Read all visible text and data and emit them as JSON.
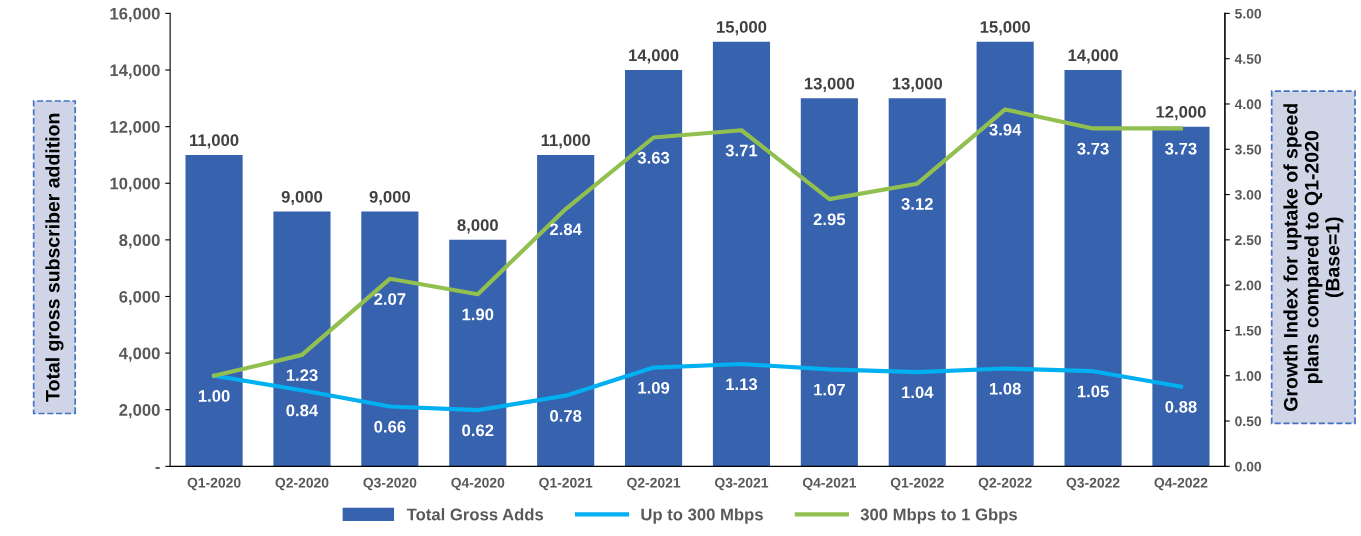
{
  "chart_data": {
    "type": "bar",
    "categories": [
      "Q1-2020",
      "Q2-2020",
      "Q3-2020",
      "Q4-2020",
      "Q1-2021",
      "Q2-2021",
      "Q3-2021",
      "Q4-2021",
      "Q1-2022",
      "Q2-2022",
      "Q3-2022",
      "Q4-2022"
    ],
    "ylabel": "Total gross subscriber addition",
    "y2label": "Growth Index for uptake of speed plans compared to Q1-2020 (Base=1)",
    "ylim": [
      0,
      16000
    ],
    "yticks": [
      {
        "value": 0,
        "label": "-"
      },
      {
        "value": 2000,
        "label": "2,000"
      },
      {
        "value": 4000,
        "label": "4,000"
      },
      {
        "value": 6000,
        "label": "6,000"
      },
      {
        "value": 8000,
        "label": "8,000"
      },
      {
        "value": 10000,
        "label": "10,000"
      },
      {
        "value": 12000,
        "label": "12,000"
      },
      {
        "value": 14000,
        "label": "14,000"
      },
      {
        "value": 16000,
        "label": "16,000"
      }
    ],
    "y2lim": [
      0,
      5
    ],
    "y2ticks": [
      {
        "value": 0,
        "label": "0.00"
      },
      {
        "value": 0.5,
        "label": "0.50"
      },
      {
        "value": 1,
        "label": "1.00"
      },
      {
        "value": 1.5,
        "label": "1.50"
      },
      {
        "value": 2,
        "label": "2.00"
      },
      {
        "value": 2.5,
        "label": "2.50"
      },
      {
        "value": 3,
        "label": "3.00"
      },
      {
        "value": 3.5,
        "label": "3.50"
      },
      {
        "value": 4,
        "label": "4.00"
      },
      {
        "value": 4.5,
        "label": "4.50"
      },
      {
        "value": 5,
        "label": "5.00"
      }
    ],
    "grid": false,
    "legend": "bottom",
    "series": [
      {
        "name": "Total Gross Adds",
        "color": "#3762ae",
        "values": [
          11000,
          9000,
          9000,
          8000,
          11000,
          14000,
          15000,
          13000,
          13000,
          15000,
          14000,
          12000
        ],
        "value_labels": [
          "11,000",
          "9,000",
          "9,000",
          "8,000",
          "11,000",
          "14,000",
          "15,000",
          "13,000",
          "13,000",
          "15,000",
          "14,000",
          "12,000"
        ]
      },
      {
        "name": "Up to 300 Mbps",
        "type": "line",
        "axis": "y2",
        "color": "#00b0f0",
        "values": [
          1.0,
          0.84,
          0.66,
          0.62,
          0.78,
          1.09,
          1.13,
          1.07,
          1.04,
          1.08,
          1.05,
          0.88
        ],
        "value_labels": [
          "1.00",
          "0.84",
          "0.66",
          "0.62",
          "0.78",
          "1.09",
          "1.13",
          "1.07",
          "1.04",
          "1.08",
          "1.05",
          "0.88"
        ]
      },
      {
        "name": "300 Mbps to 1 Gbps",
        "type": "line",
        "axis": "y2",
        "color": "#92c050",
        "values": [
          1.0,
          1.23,
          2.07,
          1.9,
          2.84,
          3.63,
          3.71,
          2.95,
          3.12,
          3.94,
          3.73,
          3.73
        ],
        "value_labels": [
          null,
          "1.23",
          "2.07",
          "1.90",
          "2.84",
          "3.63",
          "3.71",
          "2.95",
          "3.12",
          "3.94",
          "3.73",
          "3.73"
        ]
      }
    ]
  }
}
